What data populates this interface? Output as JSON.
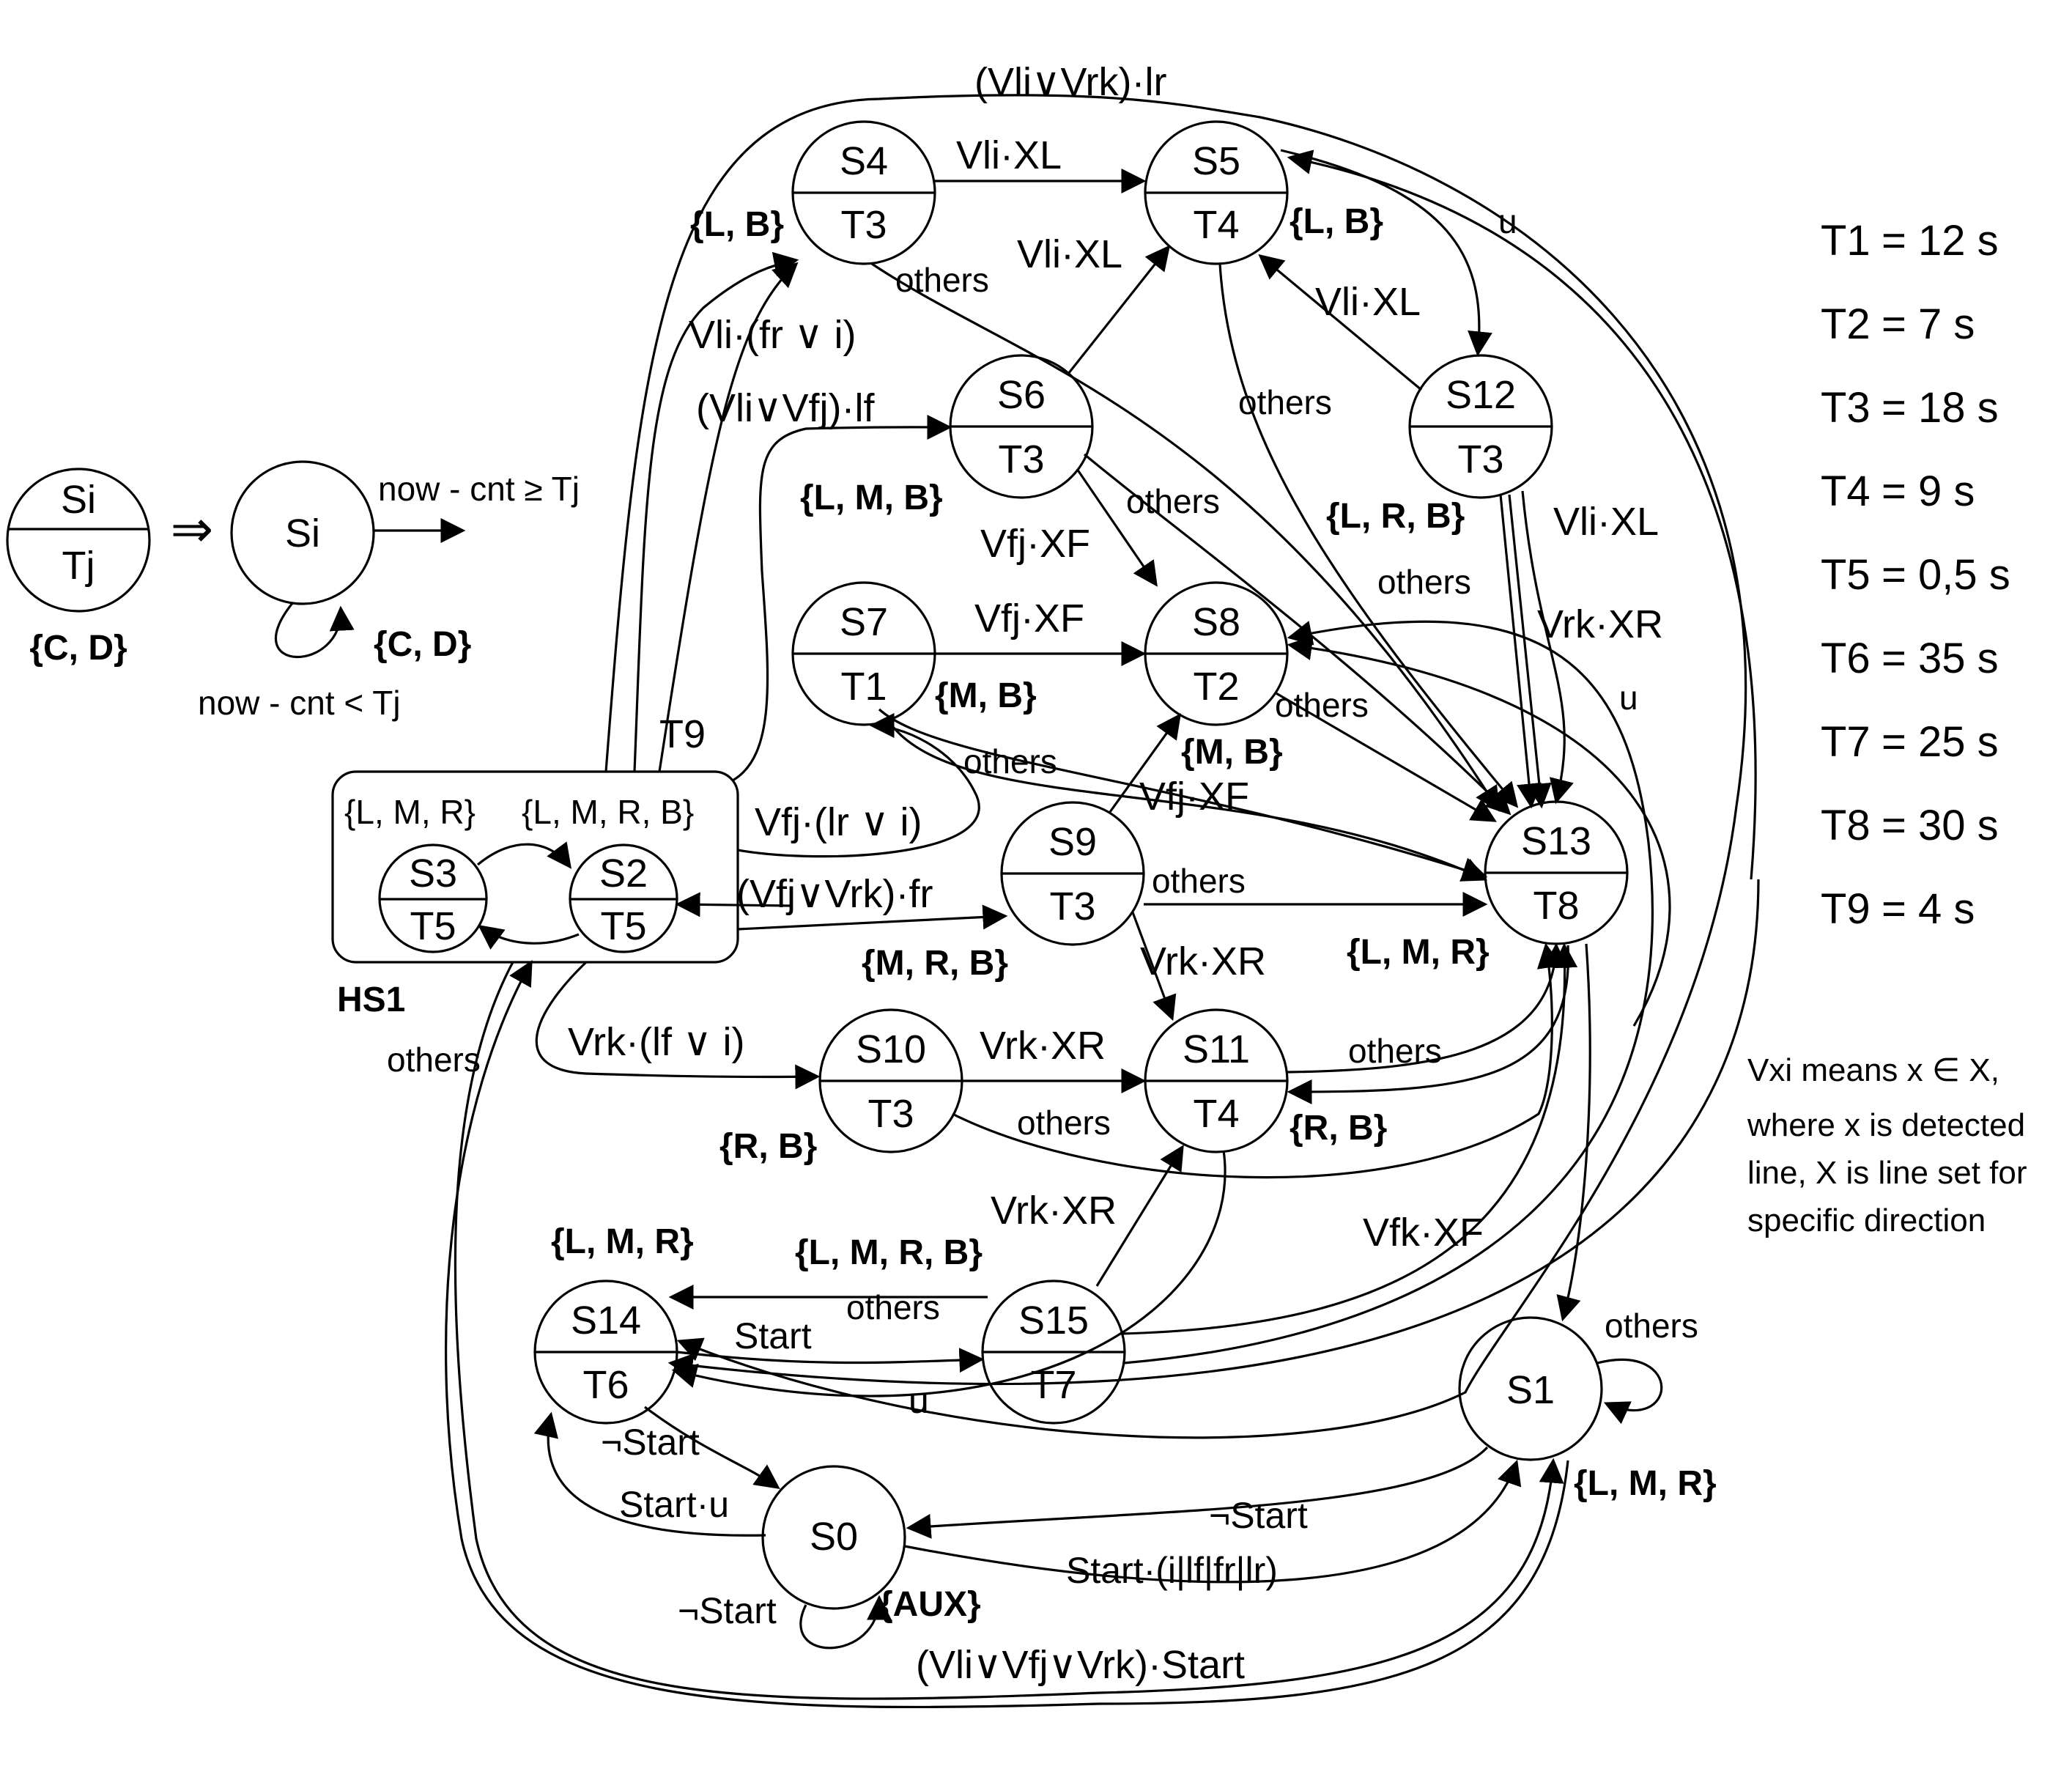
{
  "legend_example": {
    "state": "Si",
    "time": "Tj",
    "outputs": "{C, D}",
    "implies": "⇒",
    "state2": "Si",
    "exit_label": "now - cnt ≥ Tj",
    "stay_label": "now - cnt < Tj",
    "outputs2": "{C, D}"
  },
  "hierarchical_state": {
    "name": "HS1",
    "sub1": {
      "state": "S3",
      "time": "T5",
      "outputs": "{L, M, R}"
    },
    "sub2": {
      "state": "S2",
      "time": "T5",
      "outputs": "{L, M, R, B}"
    }
  },
  "states": {
    "s0": {
      "name": "S0",
      "outputs": "{AUX}"
    },
    "s1": {
      "name": "S1",
      "outputs": "{L, M, R}"
    },
    "s4": {
      "name": "S4",
      "time": "T3",
      "outputs": "{L, B}"
    },
    "s5": {
      "name": "S5",
      "time": "T4",
      "outputs": "{L, B}"
    },
    "s6": {
      "name": "S6",
      "time": "T3",
      "outputs": "{L, M, B}"
    },
    "s7": {
      "name": "S7",
      "time": "T1",
      "outputs": "{M, B}"
    },
    "s8": {
      "name": "S8",
      "time": "T2",
      "outputs": "{M, B}"
    },
    "s9": {
      "name": "S9",
      "time": "T3",
      "outputs": "{M, R, B}"
    },
    "s10": {
      "name": "S10",
      "time": "T3",
      "outputs": "{R, B}"
    },
    "s11": {
      "name": "S11",
      "time": "T4",
      "outputs": "{R, B}"
    },
    "s12": {
      "name": "S12",
      "time": "T3",
      "outputs": "{L, R, B}"
    },
    "s13": {
      "name": "S13",
      "time": "T8",
      "outputs": "{L, M, R}"
    },
    "s14": {
      "name": "S14",
      "time": "T6",
      "outputs": "{L, M, R}"
    },
    "s15": {
      "name": "S15",
      "time": "T7",
      "outputs": "{L, M, R, B}"
    }
  },
  "transitions": {
    "top_arc": "(Vli∨Vrk)·lr",
    "s4_s5": "Vli·XL",
    "s6_s5": "Vli·XL",
    "s12_s5": "Vli·XL",
    "s5_s12": "u",
    "s4_others": "others",
    "s6_others": "others",
    "s5_others": "others",
    "s12_others": "others",
    "hs_s4": "Vli·(fr ∨ i)",
    "hs_s6": "(Vli∨Vfj)·lf",
    "hs_s1": "T9",
    "s6_s8": "Vfj·XF",
    "s7_s8": "Vfj·XF",
    "s9_s8": "Vfj·XF",
    "s8_others": "others",
    "s7_others": "others",
    "s12_vli": "Vli·XL",
    "s12_vrk": "Vrk·XR",
    "right_u": "u",
    "hs_s7": "Vfj·(lr ∨ i)",
    "hs_s9": "(Vfj∨Vrk)·fr",
    "s9_others": "others",
    "s9_s11": "Vrk·XR",
    "hs_s10": "Vrk·(lf ∨ i)",
    "s10_s11": "Vrk·XR",
    "s10_others": "others",
    "s11_others": "others",
    "hs_others": "others",
    "s15_s11": "Vrk·XR",
    "s15_s14": "others",
    "s14_s15": "Start",
    "s15_u": "u",
    "right_vfk": "Vfk·XF",
    "s14_s0": "¬Start",
    "s0_s14": "Start·u",
    "s0_loop": "¬Start",
    "s1_s0": "¬Start",
    "s0_s1": "Start·(i|lf|fr|lr)",
    "bottom_arc": "(Vli∨Vfj∨Vrk)·Start",
    "s1_loop": "others"
  },
  "timings": [
    {
      "name": "T1",
      "value": "= 12 s"
    },
    {
      "name": "T2",
      "value": "= 7 s"
    },
    {
      "name": "T3",
      "value": "= 18 s"
    },
    {
      "name": "T4",
      "value": "= 9 s"
    },
    {
      "name": "T5",
      "value": "= 0,5 s"
    },
    {
      "name": "T6",
      "value": "= 35 s"
    },
    {
      "name": "T7",
      "value": "= 25 s"
    },
    {
      "name": "T8",
      "value": "= 30 s"
    },
    {
      "name": "T9",
      "value": "= 4 s"
    }
  ],
  "note": {
    "line1": "Vxi means x ∈ X,",
    "line2": "where x is detected",
    "line3": "line, X is line set for",
    "line4": "specific direction"
  }
}
